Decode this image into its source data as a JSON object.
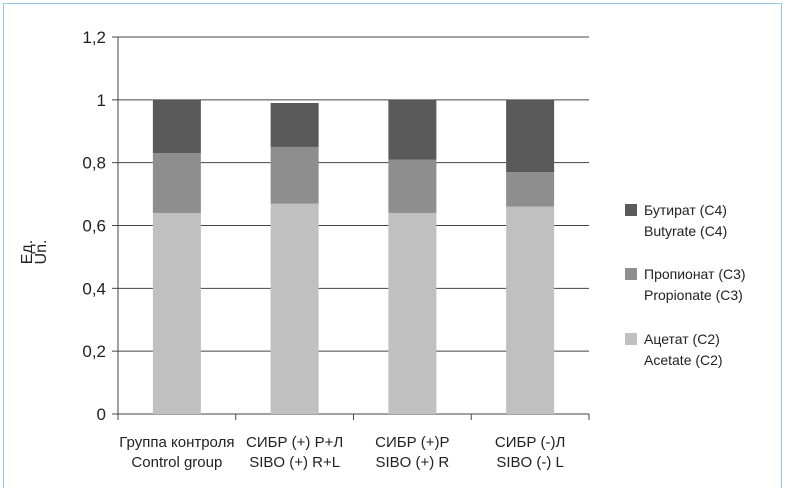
{
  "chart_data": {
    "type": "bar",
    "stacked": true,
    "ylabel_lines": [
      "Ед.",
      "Un."
    ],
    "ylim": [
      0,
      1.2
    ],
    "yticks": [
      "0",
      "0,2",
      "0,4",
      "0,6",
      "0,8",
      "1",
      "1,2"
    ],
    "categories": [
      [
        "Группа контроля",
        "Control group"
      ],
      [
        "СИБР (+) Р+Л",
        "SIBO (+) R+L"
      ],
      [
        "СИБР (+)Р",
        "SIBO (+) R"
      ],
      [
        "СИБР (-)Л",
        "SIBO (-) L"
      ]
    ],
    "series": [
      {
        "name_lines": [
          "Ацетат (С2)",
          "Acetate (C2)"
        ],
        "color": "#c0c0c0",
        "values": [
          0.64,
          0.67,
          0.64,
          0.66
        ]
      },
      {
        "name_lines": [
          "Пропионат (С3)",
          "Propionate (C3)"
        ],
        "color": "#8e8e8e",
        "values": [
          0.19,
          0.18,
          0.17,
          0.11
        ]
      },
      {
        "name_lines": [
          "Бутират (С4)",
          "Butyrate (C4)"
        ],
        "color": "#5a5a5a",
        "values": [
          0.17,
          0.14,
          0.19,
          0.23
        ]
      }
    ],
    "legend_order": [
      2,
      1,
      0
    ],
    "grid": true,
    "legend_position": "right"
  }
}
